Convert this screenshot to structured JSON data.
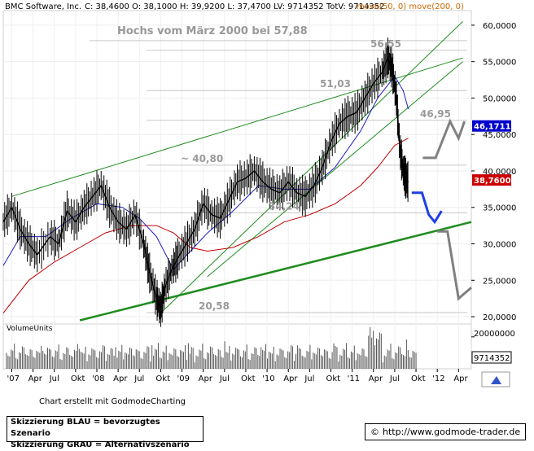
{
  "header": {
    "title": "BMC Software, Inc.",
    "ohlc": "C: 38,4600  O: 38,1000  H: 39,9200  L: 37,4700  LV: 9714352  TotV: 9714352",
    "ma_legend": "move(50, 0)  move(200, 0)"
  },
  "colors": {
    "price": "#000000",
    "ma50": "#2020c0",
    "ma200": "#c00000",
    "trend": "#1e8c1e",
    "scenario_blue": "#1f3fe6",
    "scenario_gray": "#808080",
    "grid": "#c8c8c8"
  },
  "chart_data": {
    "type": "line",
    "title": "Hochs vom März 2000 bei 57,88",
    "ylim": [
      19000,
      62000
    ],
    "y_ticks": [
      "20,0000",
      "25,0000",
      "30,0000",
      "35,0000",
      "40,0000",
      "45,0000",
      "50,0000",
      "55,0000",
      "60,0000"
    ],
    "y_tick_values": [
      20000,
      25000,
      30000,
      35000,
      40000,
      45000,
      50000,
      55000,
      60000
    ],
    "x_tick_labels": [
      "'07",
      "Apr",
      "Jul",
      "Okt",
      "'08",
      "Apr",
      "Jul",
      "Okt",
      "'09",
      "Apr",
      "Jul",
      "Okt",
      "'10",
      "Apr",
      "Jul",
      "Okt",
      "'11",
      "Apr",
      "Jul",
      "Okt",
      "'12",
      "Apr"
    ],
    "x_tick_values": [
      2007.0,
      2007.25,
      2007.5,
      2007.75,
      2008.0,
      2008.25,
      2008.5,
      2008.75,
      2009.0,
      2009.25,
      2009.5,
      2009.75,
      2010.0,
      2010.25,
      2010.5,
      2010.75,
      2011.0,
      2011.25,
      2011.5,
      2011.75,
      2012.0,
      2012.25
    ],
    "xlim": [
      2006.9,
      2012.4
    ],
    "price_series": {
      "name": "BMC Software, Inc.",
      "x": [
        2006.9,
        2007.0,
        2007.1,
        2007.2,
        2007.3,
        2007.45,
        2007.55,
        2007.65,
        2007.75,
        2007.85,
        2007.95,
        2008.05,
        2008.15,
        2008.25,
        2008.35,
        2008.45,
        2008.55,
        2008.62,
        2008.7,
        2008.75,
        2008.8,
        2008.88,
        2008.95,
        2009.05,
        2009.15,
        2009.25,
        2009.35,
        2009.45,
        2009.55,
        2009.65,
        2009.75,
        2009.85,
        2009.95,
        2010.05,
        2010.15,
        2010.25,
        2010.35,
        2010.45,
        2010.55,
        2010.65,
        2010.75,
        2010.85,
        2010.95,
        2011.05,
        2011.15,
        2011.25,
        2011.35,
        2011.42,
        2011.47,
        2011.52,
        2011.56,
        2011.6,
        2011.63,
        2011.66
      ],
      "y": [
        33000,
        35000,
        32000,
        30000,
        28500,
        31000,
        30000,
        34500,
        33000,
        35000,
        36500,
        38000,
        35000,
        33000,
        32000,
        34000,
        30000,
        26000,
        22500,
        21000,
        24000,
        26500,
        28000,
        30000,
        32000,
        35500,
        34000,
        33500,
        36000,
        38500,
        39000,
        40000,
        38500,
        37500,
        37000,
        38500,
        37000,
        36500,
        38000,
        40500,
        44000,
        46500,
        47500,
        48000,
        50000,
        52000,
        53500,
        55500,
        54000,
        50000,
        43000,
        40000,
        39000,
        38460
      ]
    },
    "ma50_series": {
      "name": "move(50, 0)",
      "x": [
        2006.9,
        2007.1,
        2007.4,
        2007.7,
        2008.0,
        2008.3,
        2008.5,
        2008.7,
        2008.9,
        2009.1,
        2009.3,
        2009.6,
        2009.9,
        2010.2,
        2010.5,
        2010.8,
        2011.1,
        2011.3,
        2011.5,
        2011.6,
        2011.66
      ],
      "y": [
        27000,
        31000,
        31000,
        33500,
        35500,
        35000,
        33500,
        31000,
        26500,
        29000,
        31500,
        34500,
        38000,
        37500,
        37500,
        40500,
        45500,
        50000,
        53000,
        51000,
        48500
      ]
    },
    "ma200_series": {
      "name": "move(200, 0)",
      "x": [
        2006.9,
        2007.2,
        2007.5,
        2007.8,
        2008.1,
        2008.4,
        2008.7,
        2008.9,
        2009.1,
        2009.3,
        2009.6,
        2009.9,
        2010.2,
        2010.5,
        2010.8,
        2011.1,
        2011.3,
        2011.5,
        2011.66
      ],
      "y": [
        20500,
        25000,
        27500,
        29500,
        31500,
        32500,
        32500,
        31500,
        29500,
        29000,
        29500,
        31000,
        33000,
        34000,
        35500,
        38000,
        40500,
        43500,
        44500
      ]
    },
    "levels": [
      {
        "label": "56,55",
        "value": 56550
      },
      {
        "label": "51,03",
        "value": 51030
      },
      {
        "label": "46,95",
        "value": 46950
      },
      {
        "label": "~ 40,80",
        "value": 40800
      },
      {
        "label": "34,24",
        "value": 34240
      },
      {
        "label": "20,58",
        "value": 20580
      }
    ],
    "high_line": {
      "value": 57880
    },
    "trendlines": [
      {
        "x": [
          2007.0,
          2012.3
        ],
        "y": [
          36500,
          55500
        ],
        "width": 1
      },
      {
        "x": [
          2008.75,
          2012.3
        ],
        "y": [
          20500,
          60500
        ],
        "width": 1
      },
      {
        "x": [
          2009.3,
          2012.3
        ],
        "y": [
          25500,
          55000
        ],
        "width": 1
      },
      {
        "x": [
          2007.8,
          2012.4
        ],
        "y": [
          19500,
          33000
        ],
        "width": 2.5
      }
    ],
    "price_labels": [
      {
        "label": "46,1711",
        "value": 46171,
        "color": "#0000cc"
      },
      {
        "label": "38,7600",
        "value": 38760,
        "color": "#cc0000"
      }
    ],
    "scenario_blue": {
      "name": "Skizzierung BLAU = bevorzugtes Szenario",
      "x": [
        2011.7,
        2011.82,
        2011.9,
        2011.97,
        2012.05
      ],
      "y": [
        37000,
        37000,
        34000,
        33000,
        34500
      ]
    },
    "scenario_gray_up": {
      "x": [
        2011.83,
        2011.98,
        2012.15,
        2012.25,
        2012.32
      ],
      "y": [
        41800,
        41800,
        46800,
        44500,
        46800
      ]
    },
    "scenario_gray_down": {
      "x": [
        2012.0,
        2012.12,
        2012.25,
        2012.4
      ],
      "y": [
        31700,
        31700,
        22500,
        24000
      ]
    },
    "volume": {
      "label": "VolumeUnits",
      "tick_label": "20000000",
      "tick_value": 20000000,
      "last_value": "9714352",
      "max_value": 25000000
    }
  },
  "footer": {
    "credit": "Chart erstellt mit GodmodeCharting",
    "legend_blue": "Skizzierung BLAU = bevorzugtes Szenario",
    "legend_gray": "Skizzierung GRAU = Alternativszenario",
    "copyright": "©",
    "url": "http://www.godmode-trader.de"
  }
}
